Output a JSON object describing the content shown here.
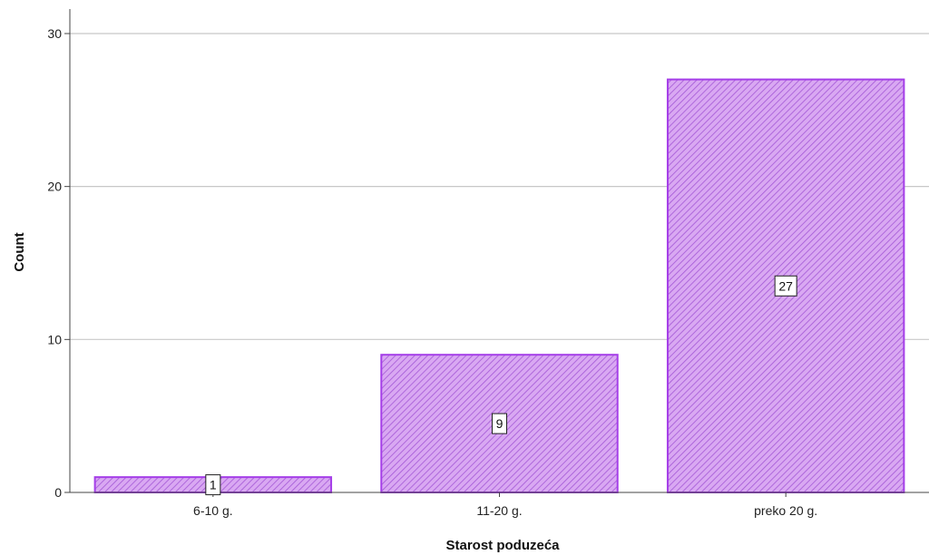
{
  "chart_data": {
    "type": "bar",
    "categories": [
      "6-10 g.",
      "11-20 g.",
      "preko 20 g."
    ],
    "values": [
      1,
      9,
      27
    ],
    "data_labels": [
      "1",
      "9",
      "27"
    ],
    "xlabel": "Starost poduzeća",
    "ylabel": "Count",
    "ylim": [
      0,
      31.6
    ],
    "yticks": [
      0,
      10,
      20,
      30
    ],
    "grid": true,
    "grid_axis": "y",
    "legend": "none",
    "bar_fill": "#d9a8f2",
    "bar_hatch_color": "#a357d6",
    "bar_stroke": "#a53ee8"
  }
}
